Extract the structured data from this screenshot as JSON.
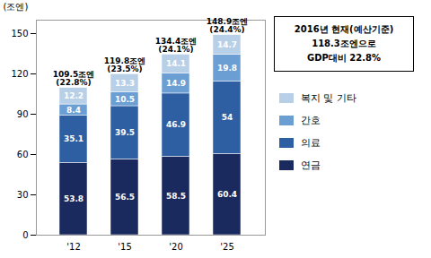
{
  "chart_data": {
    "type": "bar",
    "stacked": true,
    "categories": [
      "'12",
      "'15",
      "'20",
      "'25"
    ],
    "series": [
      {
        "name": "연금",
        "color": "#1b2a5e",
        "values": [
          53.8,
          56.5,
          58.5,
          60.4
        ]
      },
      {
        "name": "의료",
        "color": "#2e5fa3",
        "values": [
          35.1,
          39.5,
          46.9,
          54.0
        ]
      },
      {
        "name": "간호",
        "color": "#6b9fd4",
        "values": [
          8.4,
          10.5,
          14.9,
          19.8
        ]
      },
      {
        "name": "복지 및 기타",
        "color": "#b8cfe8",
        "values": [
          12.2,
          13.3,
          14.1,
          14.7
        ]
      }
    ],
    "ylabel": "(조엔)",
    "ylim": [
      0,
      160
    ],
    "yticks": [
      0,
      30,
      60,
      90,
      120,
      150
    ],
    "grid": false,
    "legend": "right",
    "data_labels": true,
    "total_labels": [
      [
        "109.5조엔",
        "(22.8%)"
      ],
      [
        "119.8조엔",
        "(23.5%)"
      ],
      [
        "134.4조엔",
        "(24.1%)"
      ],
      [
        "148.9조엔",
        "(24.4%)"
      ]
    ],
    "annotation": [
      "2016년 현재(예산기준)",
      "118.3조엔으로",
      "GDP대비 22.8%"
    ]
  }
}
